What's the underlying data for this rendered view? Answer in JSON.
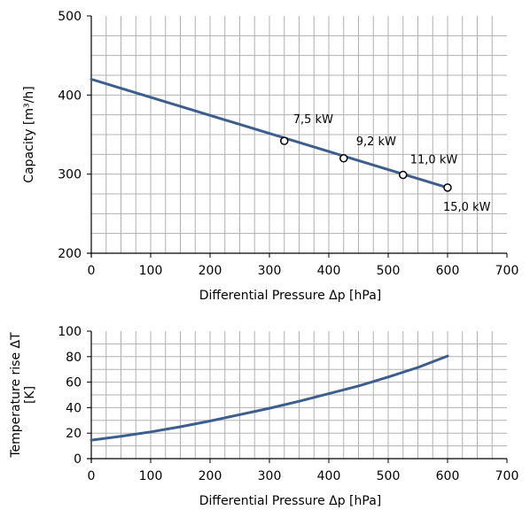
{
  "chart_data": [
    {
      "type": "line",
      "xlabel": "Differential Pressure Δp [hPa]",
      "ylabel": "Capacity [m³/h]",
      "xlim": [
        0,
        700
      ],
      "ylim": [
        200,
        500
      ],
      "xticks": [
        0,
        100,
        200,
        300,
        400,
        500,
        600,
        700
      ],
      "yticks": [
        200,
        300,
        400,
        500
      ],
      "grid": true,
      "series": [
        {
          "x": [
            0,
            600
          ],
          "y": [
            420,
            283
          ]
        }
      ],
      "points": [
        {
          "x": 325,
          "y": 342,
          "label": "7,5 kW"
        },
        {
          "x": 425,
          "y": 320,
          "label": "9,2 kW"
        },
        {
          "x": 525,
          "y": 299,
          "label": "11,0 kW"
        },
        {
          "x": 600,
          "y": 283,
          "label": "15,0 kW"
        }
      ],
      "colors": {
        "line": "#3b5e8f",
        "grid": "#b0b0b0",
        "axis": "#000000"
      }
    },
    {
      "type": "line",
      "xlabel": "Differential Pressure Δp [hPa]",
      "ylabel_lines": [
        "Temperature rise ΔT",
        "[K]"
      ],
      "xlim": [
        0,
        700
      ],
      "ylim": [
        0,
        100
      ],
      "xticks": [
        0,
        100,
        200,
        300,
        400,
        500,
        600,
        700
      ],
      "yticks": [
        0,
        20,
        40,
        60,
        80,
        100
      ],
      "grid": true,
      "series": [
        {
          "x": [
            0,
            50,
            100,
            150,
            200,
            250,
            300,
            350,
            400,
            450,
            500,
            550,
            600
          ],
          "y": [
            14.5,
            17.5,
            21,
            25,
            29.5,
            34.5,
            39.5,
            45,
            51,
            57,
            64,
            71.5,
            80.5
          ]
        }
      ],
      "colors": {
        "line": "#3b5e8f",
        "grid": "#b0b0b0",
        "axis": "#000000"
      }
    }
  ]
}
